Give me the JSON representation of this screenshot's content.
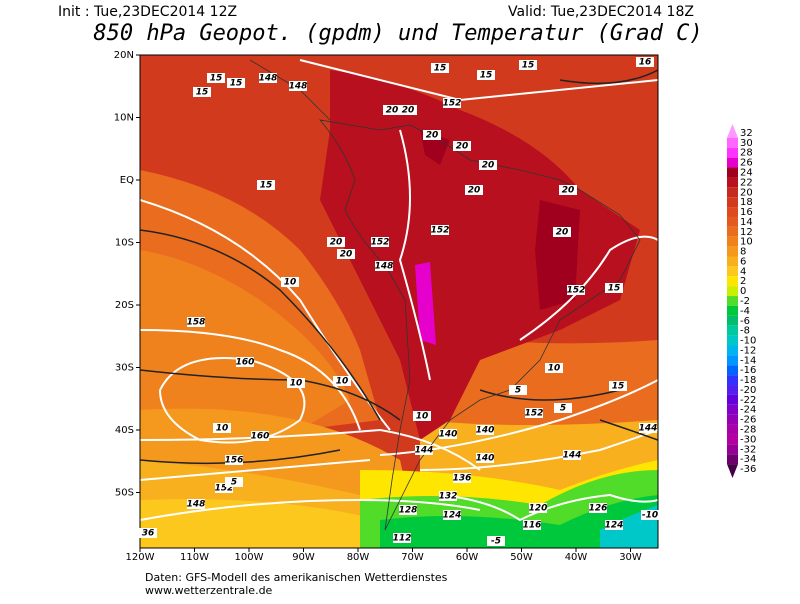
{
  "header": {
    "init": "Init : Tue,23DEC2014 12Z",
    "valid": "Valid: Tue,23DEC2014 18Z",
    "title": "850 hPa Geopot. (gpdm) und Temperatur (Grad C)"
  },
  "map": {
    "lat_labels": [
      "20N",
      "10N",
      "EQ",
      "10S",
      "20S",
      "30S",
      "40S",
      "50S"
    ],
    "lon_labels": [
      "120W",
      "110W",
      "100W",
      "90W",
      "80W",
      "70W",
      "60W",
      "50W",
      "40W",
      "30W"
    ],
    "contour_labels": [
      15,
      15,
      15,
      148,
      20,
      20,
      20,
      152,
      148,
      20,
      20,
      15,
      15,
      15,
      16,
      20,
      20,
      20,
      152,
      148,
      20,
      20,
      152,
      15,
      152,
      15,
      158,
      10,
      160,
      10,
      10,
      10,
      160,
      156,
      152,
      148,
      144,
      144,
      140,
      140,
      144,
      136,
      132,
      128,
      124,
      120,
      116,
      112,
      126,
      124,
      5,
      5,
      5,
      -5,
      -10,
      36,
      10,
      10,
      15,
      152,
      140
    ]
  },
  "colorbar": {
    "levels": [
      32,
      30,
      28,
      26,
      24,
      22,
      20,
      18,
      16,
      14,
      12,
      10,
      8,
      6,
      4,
      2,
      0,
      -2,
      -4,
      -6,
      -8,
      -10,
      -12,
      -14,
      -16,
      -18,
      -20,
      -22,
      -24,
      -26,
      -28,
      -30,
      -32,
      -34,
      -36
    ],
    "colors": [
      "#ff99ff",
      "#ff66ff",
      "#ff33ff",
      "#e600cc",
      "#a0001e",
      "#b8101e",
      "#c62a1e",
      "#d23a1e",
      "#dc4a1e",
      "#e45a1e",
      "#ea6c1e",
      "#f0821e",
      "#f5981e",
      "#f8b01e",
      "#fcc81e",
      "#ffe600",
      "#c8f000",
      "#50dc28",
      "#00c83c",
      "#00be6e",
      "#00c8a0",
      "#00c8c8",
      "#00b4f0",
      "#0096ff",
      "#0064ff",
      "#3232ff",
      "#5020f0",
      "#6400dc",
      "#8200c8",
      "#9600b4",
      "#aa00aa",
      "#b400a0",
      "#960096",
      "#6e006e",
      "#460046"
    ]
  },
  "footer": {
    "source": "Daten: GFS-Modell des amerikanischen Wetterdienstes",
    "url": "www.wetterzentrale.de"
  }
}
